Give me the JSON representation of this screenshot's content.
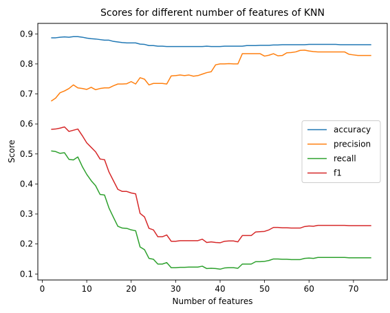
{
  "chart_data": {
    "type": "line",
    "title": "Scores for different number of features of KNN",
    "xlabel": "Number of features",
    "ylabel": "Score",
    "xlim": [
      -1,
      77.6
    ],
    "ylim": [
      0.08,
      0.935
    ],
    "x_ticks": [
      0,
      10,
      20,
      30,
      40,
      50,
      60,
      70
    ],
    "y_ticks": [
      0.1,
      0.2,
      0.3,
      0.4,
      0.5,
      0.6,
      0.7,
      0.8,
      0.9
    ],
    "grid": false,
    "legend_position": "center-right",
    "x": [
      2,
      3,
      4,
      5,
      6,
      7,
      8,
      9,
      10,
      11,
      12,
      13,
      14,
      15,
      16,
      17,
      18,
      19,
      20,
      21,
      22,
      23,
      24,
      25,
      26,
      27,
      28,
      29,
      30,
      31,
      32,
      33,
      34,
      35,
      36,
      37,
      38,
      39,
      40,
      41,
      42,
      43,
      44,
      45,
      46,
      47,
      48,
      49,
      50,
      51,
      52,
      53,
      54,
      55,
      56,
      57,
      58,
      59,
      60,
      61,
      62,
      63,
      64,
      65,
      66,
      67,
      68,
      69,
      70,
      71,
      72,
      73,
      74
    ],
    "series": [
      {
        "name": "accuracy",
        "color": "#1f77b4",
        "values": [
          0.887,
          0.887,
          0.889,
          0.89,
          0.889,
          0.891,
          0.891,
          0.889,
          0.886,
          0.884,
          0.883,
          0.881,
          0.879,
          0.879,
          0.875,
          0.873,
          0.871,
          0.87,
          0.87,
          0.87,
          0.866,
          0.865,
          0.861,
          0.861,
          0.859,
          0.859,
          0.858,
          0.858,
          0.858,
          0.858,
          0.858,
          0.858,
          0.858,
          0.858,
          0.858,
          0.859,
          0.858,
          0.858,
          0.858,
          0.859,
          0.859,
          0.859,
          0.859,
          0.859,
          0.861,
          0.861,
          0.861,
          0.862,
          0.862,
          0.862,
          0.863,
          0.863,
          0.864,
          0.864,
          0.864,
          0.864,
          0.864,
          0.864,
          0.865,
          0.865,
          0.865,
          0.865,
          0.865,
          0.865,
          0.865,
          0.864,
          0.864,
          0.864,
          0.864,
          0.864,
          0.864,
          0.864,
          0.864
        ]
      },
      {
        "name": "precision",
        "color": "#ff7f0e",
        "values": [
          0.676,
          0.686,
          0.704,
          0.71,
          0.718,
          0.73,
          0.72,
          0.718,
          0.715,
          0.722,
          0.714,
          0.718,
          0.72,
          0.72,
          0.727,
          0.733,
          0.733,
          0.734,
          0.741,
          0.733,
          0.754,
          0.749,
          0.73,
          0.735,
          0.735,
          0.735,
          0.733,
          0.76,
          0.761,
          0.763,
          0.761,
          0.763,
          0.759,
          0.761,
          0.766,
          0.771,
          0.774,
          0.797,
          0.8,
          0.8,
          0.801,
          0.8,
          0.8,
          0.834,
          0.834,
          0.834,
          0.834,
          0.834,
          0.826,
          0.829,
          0.834,
          0.827,
          0.828,
          0.837,
          0.838,
          0.84,
          0.845,
          0.846,
          0.843,
          0.841,
          0.84,
          0.84,
          0.84,
          0.84,
          0.84,
          0.84,
          0.84,
          0.832,
          0.83,
          0.828,
          0.828,
          0.828,
          0.828
        ]
      },
      {
        "name": "recall",
        "color": "#2ca02c",
        "values": [
          0.51,
          0.508,
          0.502,
          0.504,
          0.482,
          0.48,
          0.49,
          0.458,
          0.432,
          0.411,
          0.394,
          0.365,
          0.363,
          0.32,
          0.289,
          0.259,
          0.253,
          0.252,
          0.247,
          0.244,
          0.19,
          0.181,
          0.152,
          0.149,
          0.133,
          0.133,
          0.138,
          0.121,
          0.121,
          0.122,
          0.122,
          0.123,
          0.123,
          0.123,
          0.126,
          0.118,
          0.119,
          0.118,
          0.116,
          0.12,
          0.121,
          0.121,
          0.119,
          0.133,
          0.133,
          0.133,
          0.141,
          0.141,
          0.142,
          0.145,
          0.15,
          0.15,
          0.149,
          0.149,
          0.148,
          0.148,
          0.148,
          0.152,
          0.153,
          0.152,
          0.155,
          0.155,
          0.155,
          0.155,
          0.155,
          0.155,
          0.155,
          0.154,
          0.154,
          0.154,
          0.154,
          0.154,
          0.154
        ]
      },
      {
        "name": "f1",
        "color": "#d62728",
        "values": [
          0.582,
          0.583,
          0.586,
          0.59,
          0.575,
          0.579,
          0.583,
          0.561,
          0.537,
          0.522,
          0.507,
          0.483,
          0.481,
          0.44,
          0.411,
          0.382,
          0.375,
          0.375,
          0.37,
          0.367,
          0.302,
          0.29,
          0.252,
          0.247,
          0.224,
          0.224,
          0.23,
          0.209,
          0.209,
          0.211,
          0.211,
          0.211,
          0.211,
          0.211,
          0.216,
          0.205,
          0.207,
          0.205,
          0.204,
          0.209,
          0.21,
          0.21,
          0.207,
          0.228,
          0.228,
          0.228,
          0.24,
          0.241,
          0.242,
          0.247,
          0.255,
          0.255,
          0.254,
          0.254,
          0.253,
          0.253,
          0.253,
          0.258,
          0.26,
          0.259,
          0.262,
          0.262,
          0.262,
          0.262,
          0.262,
          0.262,
          0.262,
          0.261,
          0.261,
          0.261,
          0.261,
          0.261,
          0.261
        ]
      }
    ]
  }
}
